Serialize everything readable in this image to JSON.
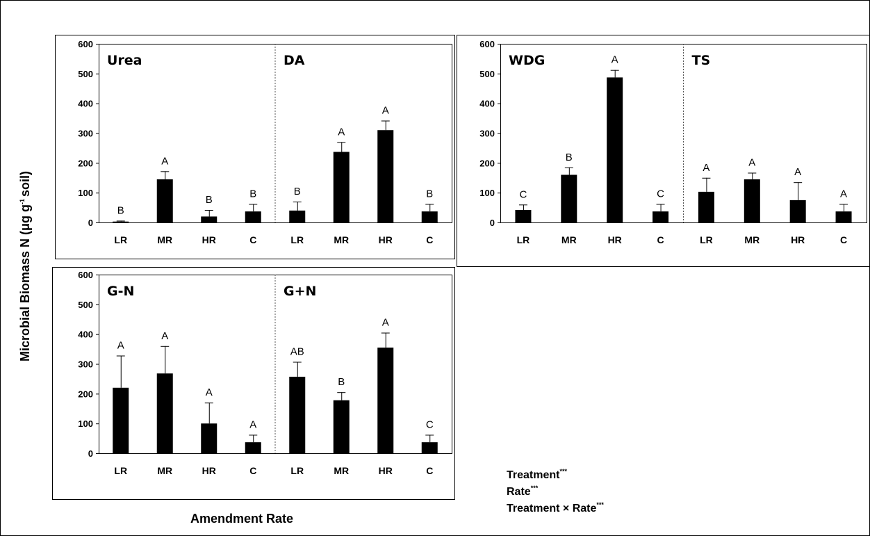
{
  "chart_data": {
    "type": "bar",
    "ylabel_main": "Microbial Biomass N (μg g",
    "ylabel_sup": "-1",
    "ylabel_tail": "soil)",
    "xlabel": "Amendment Rate",
    "ylim": [
      0,
      600
    ],
    "yticks": [
      "0",
      "100",
      "200",
      "300",
      "400",
      "500",
      "600"
    ],
    "categories": [
      "LR",
      "MR",
      "HR",
      "C"
    ],
    "panels": [
      {
        "groups": [
          {
            "label": "Urea",
            "values": [
              3,
              145,
              20,
              37
            ],
            "errors": [
              3,
              27,
              22,
              25
            ],
            "letters": [
              "B",
              "A",
              "B",
              "B"
            ]
          },
          {
            "label": "DA",
            "values": [
              40,
              237,
              310,
              37
            ],
            "errors": [
              30,
              33,
              32,
              25
            ],
            "letters": [
              "B",
              "A",
              "A",
              "B"
            ]
          }
        ]
      },
      {
        "groups": [
          {
            "label": "WDG",
            "values": [
              42,
              160,
              487,
              37
            ],
            "errors": [
              18,
              25,
              25,
              25
            ],
            "letters": [
              "C",
              "B",
              "A",
              "C"
            ]
          },
          {
            "label": "TS",
            "values": [
              103,
              145,
              75,
              37
            ],
            "errors": [
              47,
              22,
              60,
              25
            ],
            "letters": [
              "A",
              "A",
              "A",
              "A"
            ]
          }
        ]
      },
      {
        "groups": [
          {
            "label": "G-N",
            "values": [
              220,
              268,
              100,
              37
            ],
            "errors": [
              108,
              92,
              70,
              25
            ],
            "letters": [
              "A",
              "A",
              "A",
              "A"
            ]
          },
          {
            "label": "G+N",
            "values": [
              257,
              178,
              355,
              37
            ],
            "errors": [
              50,
              27,
              50,
              25
            ],
            "letters": [
              "AB",
              "B",
              "A",
              "C"
            ]
          }
        ]
      }
    ],
    "stats": [
      {
        "text": "Treatment",
        "sup": "***"
      },
      {
        "text": "Rate",
        "sup": "***"
      },
      {
        "text": "Treatment × Rate",
        "sup": "***"
      }
    ]
  }
}
